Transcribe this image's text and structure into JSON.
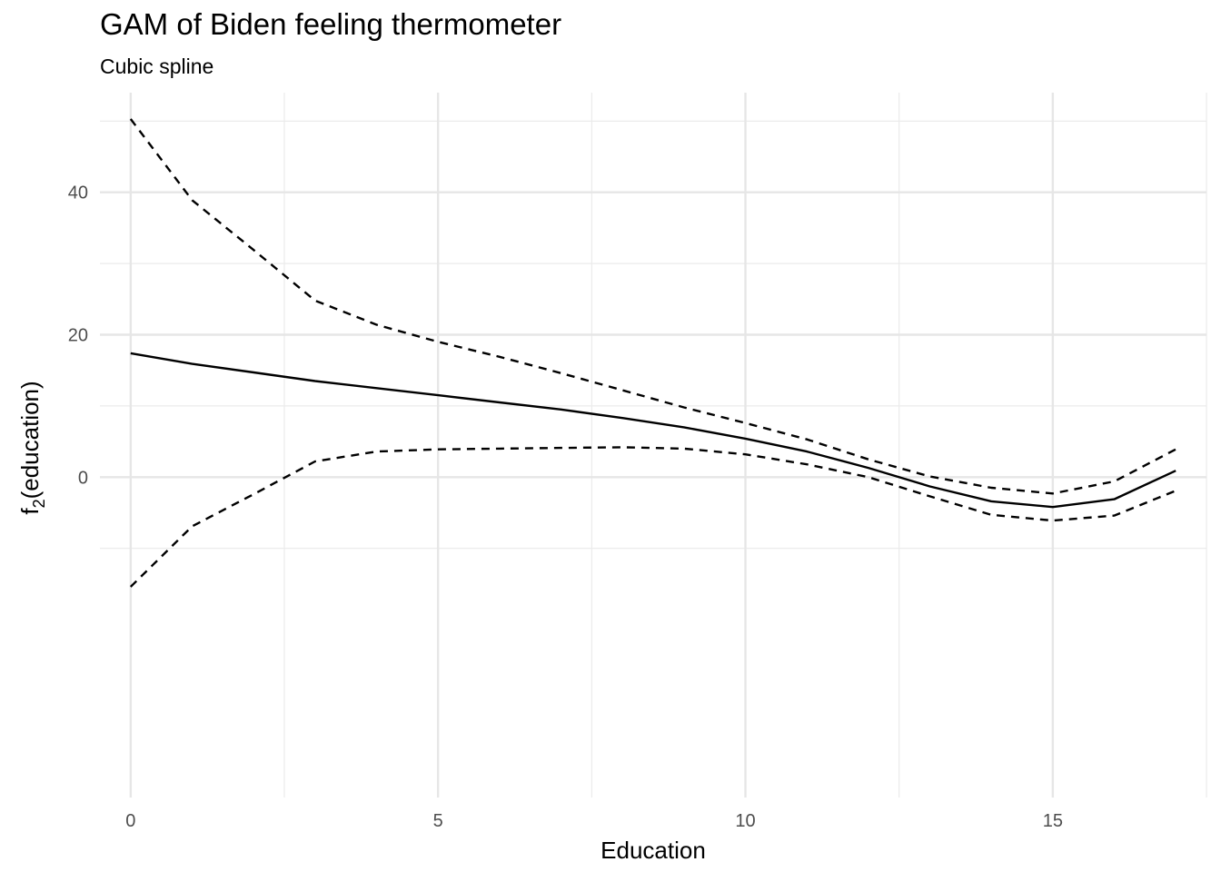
{
  "chart_data": {
    "type": "line",
    "title": "GAM of Biden feeling thermometer",
    "subtitle": "Cubic spline",
    "xlabel": "Education",
    "ylabel_main": "f",
    "ylabel_sub": "2",
    "ylabel_rest": "(education)",
    "xlim": [
      -0.5,
      17.5
    ],
    "ylim": [
      -45,
      54
    ],
    "x_ticks": [
      0,
      5,
      10,
      15
    ],
    "y_ticks": [
      0,
      20,
      40
    ],
    "x_minor": [
      2.5,
      7.5,
      12.5,
      17.5
    ],
    "y_minor": [
      -10,
      10,
      30,
      50
    ],
    "grid": true,
    "x": [
      0,
      1,
      2,
      3,
      4,
      5,
      6,
      7,
      8,
      9,
      10,
      11,
      12,
      13,
      14,
      15,
      16,
      17
    ],
    "series": [
      {
        "style": "solid",
        "values": [
          17.4,
          15.9,
          14.7,
          13.5,
          12.5,
          11.5,
          10.5,
          9.5,
          8.3,
          7.0,
          5.4,
          3.6,
          1.3,
          -1.3,
          -3.4,
          -4.2,
          -3.1,
          0.9
        ]
      },
      {
        "style": "dashed",
        "values": [
          50.3,
          38.9,
          31.9,
          24.8,
          21.4,
          19.0,
          16.9,
          14.6,
          12.2,
          9.8,
          7.6,
          5.3,
          2.5,
          0.1,
          -1.5,
          -2.3,
          -0.6,
          3.9
        ]
      },
      {
        "style": "dashed",
        "values": [
          -15.4,
          -6.9,
          -2.4,
          2.2,
          3.6,
          3.9,
          4.0,
          4.1,
          4.2,
          4.0,
          3.2,
          1.8,
          0.0,
          -2.7,
          -5.3,
          -6.1,
          -5.4,
          -1.9
        ]
      }
    ]
  }
}
